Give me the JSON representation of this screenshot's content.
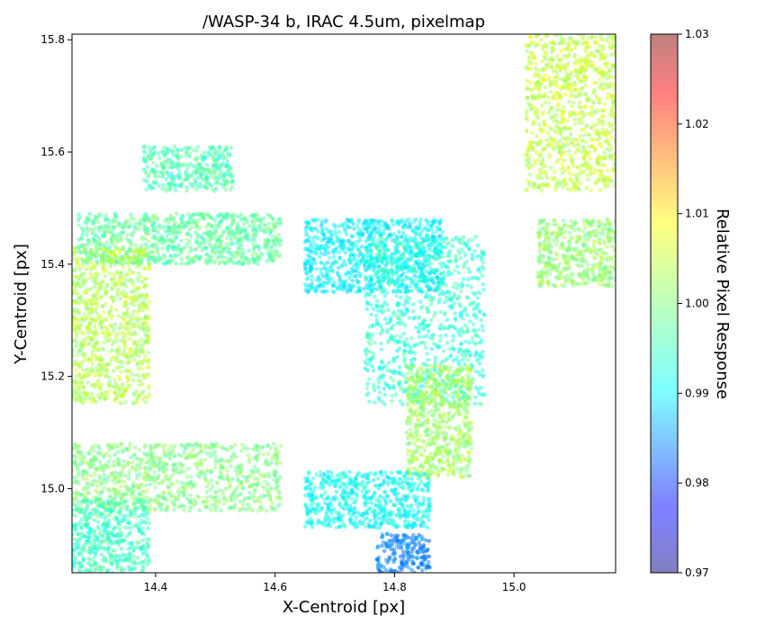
{
  "chart_data": {
    "type": "scatter",
    "title": "/WASP-34 b, IRAC 4.5um, pixelmap",
    "xlabel": "X-Centroid [px]",
    "ylabel": "Y-Centroid [px]",
    "xlim": [
      14.26,
      15.17
    ],
    "ylim": [
      14.85,
      15.81
    ],
    "xticks": [
      14.4,
      14.6,
      14.8,
      15.0
    ],
    "yticks": [
      15.0,
      15.2,
      15.4,
      15.6,
      15.8
    ],
    "xtick_labels": [
      "14.4",
      "14.6",
      "14.8",
      "15.0"
    ],
    "ytick_labels": [
      "15.0",
      "15.2",
      "15.4",
      "15.6",
      "15.8"
    ],
    "grid": false,
    "colorbar": {
      "label": "Relative Pixel Response",
      "range": [
        0.97,
        1.03
      ],
      "ticks": [
        0.97,
        0.98,
        0.99,
        1.0,
        1.01,
        1.02,
        1.03
      ],
      "tick_labels": [
        "0.97",
        "0.98",
        "0.99",
        "1.00",
        "1.01",
        "1.02",
        "1.03"
      ],
      "colormap": "jet",
      "alpha": 0.5
    },
    "clusters": [
      {
        "x_range": [
          14.38,
          14.53
        ],
        "y_range": [
          15.53,
          15.61
        ],
        "response": 0.997
      },
      {
        "x_range": [
          14.27,
          14.61
        ],
        "y_range": [
          15.4,
          15.49
        ],
        "response": 0.998
      },
      {
        "x_range": [
          14.26,
          14.39
        ],
        "y_range": [
          15.15,
          15.43
        ],
        "response": 1.003
      },
      {
        "x_range": [
          14.26,
          14.61
        ],
        "y_range": [
          14.96,
          15.08
        ],
        "response": 1.0
      },
      {
        "x_range": [
          14.26,
          14.39
        ],
        "y_range": [
          14.85,
          14.98
        ],
        "response": 0.996
      },
      {
        "x_range": [
          14.65,
          14.88
        ],
        "y_range": [
          15.35,
          15.48
        ],
        "response": 0.992
      },
      {
        "x_range": [
          14.75,
          14.95
        ],
        "y_range": [
          15.15,
          15.45
        ],
        "response": 0.995
      },
      {
        "x_range": [
          14.82,
          14.93
        ],
        "y_range": [
          15.02,
          15.22
        ],
        "response": 1.002
      },
      {
        "x_range": [
          14.65,
          14.86
        ],
        "y_range": [
          14.93,
          15.03
        ],
        "response": 0.993
      },
      {
        "x_range": [
          14.77,
          14.86
        ],
        "y_range": [
          14.85,
          14.92
        ],
        "response": 0.985
      },
      {
        "x_range": [
          15.02,
          15.17
        ],
        "y_range": [
          15.53,
          15.81
        ],
        "response": 1.004
      },
      {
        "x_range": [
          15.04,
          15.17
        ],
        "y_range": [
          15.36,
          15.48
        ],
        "response": 1.001
      }
    ]
  }
}
